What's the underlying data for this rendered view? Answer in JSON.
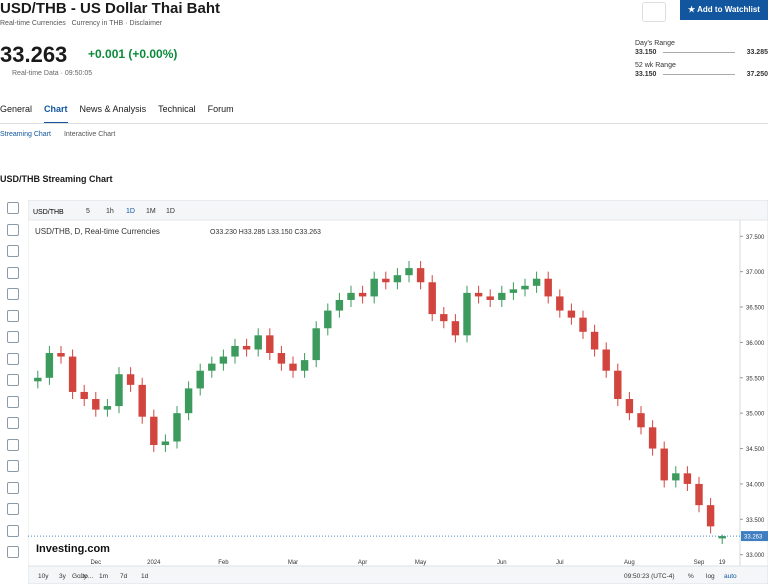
{
  "header": {
    "title": "USD/THB - US Dollar Thai Baht",
    "market": "Real-time Currencies",
    "currency_label": "Currency in",
    "currency": "THB",
    "disclaimer": "Disclaimer",
    "price": "33.263",
    "change": "+0.001 (+0.00%)",
    "data_note": "Real-time Data · 09:50:05",
    "watchlist_button": "Add to Watchlist"
  },
  "ranges": [
    {
      "label": "Day's Range",
      "low": "33.150",
      "high": "33.285"
    },
    {
      "label": "52 wk Range",
      "low": "33.150",
      "high": "37.250"
    }
  ],
  "nav": [
    "General",
    "Chart",
    "News & Analysis",
    "Technical",
    "Forum"
  ],
  "subnav": [
    "Streaming Chart",
    "Interactive Chart"
  ],
  "section_title": "USD/THB Streaming Chart",
  "toolbar": {
    "symbol": "USD/THB",
    "intervals": [
      "5",
      "1h",
      "1D",
      "1M",
      "1D"
    ]
  },
  "footer": {
    "ranges": [
      "10y",
      "3y",
      "1y",
      "1m",
      "7d",
      "1d"
    ],
    "goto": "Go to...",
    "time": "09:50:23 (UTC-4)",
    "options": [
      "%",
      "log",
      "auto"
    ]
  },
  "chart_data": {
    "type": "candlestick",
    "legend": "USD/THB, D, Real-time Currencies",
    "ohlc_legend": "O33.230  H33.285  L33.150  C33.263",
    "watermark": "Investing.com",
    "up_color": "#3b9a5c",
    "down_color": "#d2453f",
    "categories": [
      null,
      null,
      null,
      null,
      null,
      "Dec",
      null,
      null,
      null,
      null,
      "2024",
      null,
      null,
      null,
      null,
      null,
      "Feb",
      null,
      null,
      null,
      null,
      null,
      "Mar",
      null,
      null,
      null,
      null,
      null,
      "Apr",
      null,
      null,
      null,
      null,
      "May",
      null,
      null,
      null,
      null,
      null,
      null,
      "Jun",
      null,
      null,
      null,
      null,
      "Jul",
      null,
      null,
      null,
      null,
      null,
      "Aug",
      null,
      null,
      null,
      null,
      null,
      "Sep",
      null,
      "19"
    ],
    "open": [
      35.45,
      35.5,
      35.85,
      35.8,
      35.3,
      35.2,
      35.05,
      35.1,
      35.55,
      35.4,
      34.95,
      34.55,
      34.6,
      35.0,
      35.35,
      35.6,
      35.7,
      35.8,
      35.95,
      35.9,
      36.1,
      35.85,
      35.7,
      35.6,
      35.75,
      36.2,
      36.45,
      36.6,
      36.7,
      36.65,
      36.9,
      36.85,
      36.95,
      37.05,
      36.85,
      36.4,
      36.3,
      36.1,
      36.7,
      36.65,
      36.6,
      36.7,
      36.75,
      36.8,
      36.9,
      36.65,
      36.45,
      36.35,
      36.15,
      35.9,
      35.6,
      35.2,
      35.0,
      34.8,
      34.5,
      34.05,
      34.15,
      34.0,
      33.7,
      33.23
    ],
    "high": [
      35.6,
      35.95,
      35.95,
      35.9,
      35.4,
      35.3,
      35.2,
      35.65,
      35.65,
      35.5,
      35.05,
      34.7,
      35.1,
      35.45,
      35.7,
      35.8,
      35.9,
      36.05,
      36.05,
      36.2,
      36.2,
      35.95,
      35.8,
      35.85,
      36.3,
      36.55,
      36.7,
      36.8,
      36.8,
      37.0,
      37.0,
      37.05,
      37.15,
      37.15,
      36.95,
      36.5,
      36.4,
      36.8,
      36.8,
      36.75,
      36.8,
      36.85,
      36.9,
      37.0,
      37.0,
      36.75,
      36.55,
      36.45,
      36.25,
      36.0,
      35.7,
      35.3,
      35.1,
      34.9,
      34.6,
      34.25,
      34.25,
      34.1,
      33.8,
      33.285
    ],
    "low": [
      35.35,
      35.4,
      35.7,
      35.2,
      35.1,
      34.95,
      34.95,
      35.0,
      35.3,
      34.85,
      34.45,
      34.45,
      34.5,
      34.9,
      35.25,
      35.5,
      35.6,
      35.7,
      35.8,
      35.8,
      35.75,
      35.6,
      35.5,
      35.5,
      35.65,
      36.1,
      36.35,
      36.5,
      36.55,
      36.55,
      36.75,
      36.75,
      36.85,
      36.75,
      36.3,
      36.2,
      36.0,
      36.0,
      36.55,
      36.5,
      36.5,
      36.6,
      36.65,
      36.7,
      36.55,
      36.35,
      36.25,
      36.05,
      35.8,
      35.5,
      35.1,
      34.9,
      34.7,
      34.4,
      33.95,
      33.95,
      33.9,
      33.6,
      33.3,
      33.15
    ],
    "close": [
      35.5,
      35.85,
      35.8,
      35.3,
      35.2,
      35.05,
      35.1,
      35.55,
      35.4,
      34.95,
      34.55,
      34.6,
      35.0,
      35.35,
      35.6,
      35.7,
      35.8,
      35.95,
      35.9,
      36.1,
      35.85,
      35.7,
      35.6,
      35.75,
      36.2,
      36.45,
      36.6,
      36.7,
      36.65,
      36.9,
      36.85,
      36.95,
      37.05,
      36.85,
      36.4,
      36.3,
      36.1,
      36.7,
      36.65,
      36.6,
      36.7,
      36.75,
      36.8,
      36.9,
      36.65,
      36.45,
      36.35,
      36.15,
      35.9,
      35.6,
      35.2,
      35.0,
      34.8,
      34.5,
      34.05,
      34.15,
      34.0,
      33.7,
      33.4,
      33.263
    ],
    "ylim": [
      32.84,
      37.73
    ],
    "yticks": [
      {
        "value": 37.5,
        "label": "37.500"
      },
      {
        "value": 37,
        "label": "37.000"
      },
      {
        "value": 36.5,
        "label": "36.500"
      },
      {
        "value": 36,
        "label": "36.000"
      },
      {
        "value": 35.5,
        "label": "35.500"
      },
      {
        "value": 35,
        "label": "35.000"
      },
      {
        "value": 34.5,
        "label": "34.500"
      },
      {
        "value": 34,
        "label": "34.000"
      },
      {
        "value": 33.5,
        "label": "33.500"
      },
      {
        "value": 33,
        "label": "33.000"
      }
    ],
    "grid": false
  }
}
